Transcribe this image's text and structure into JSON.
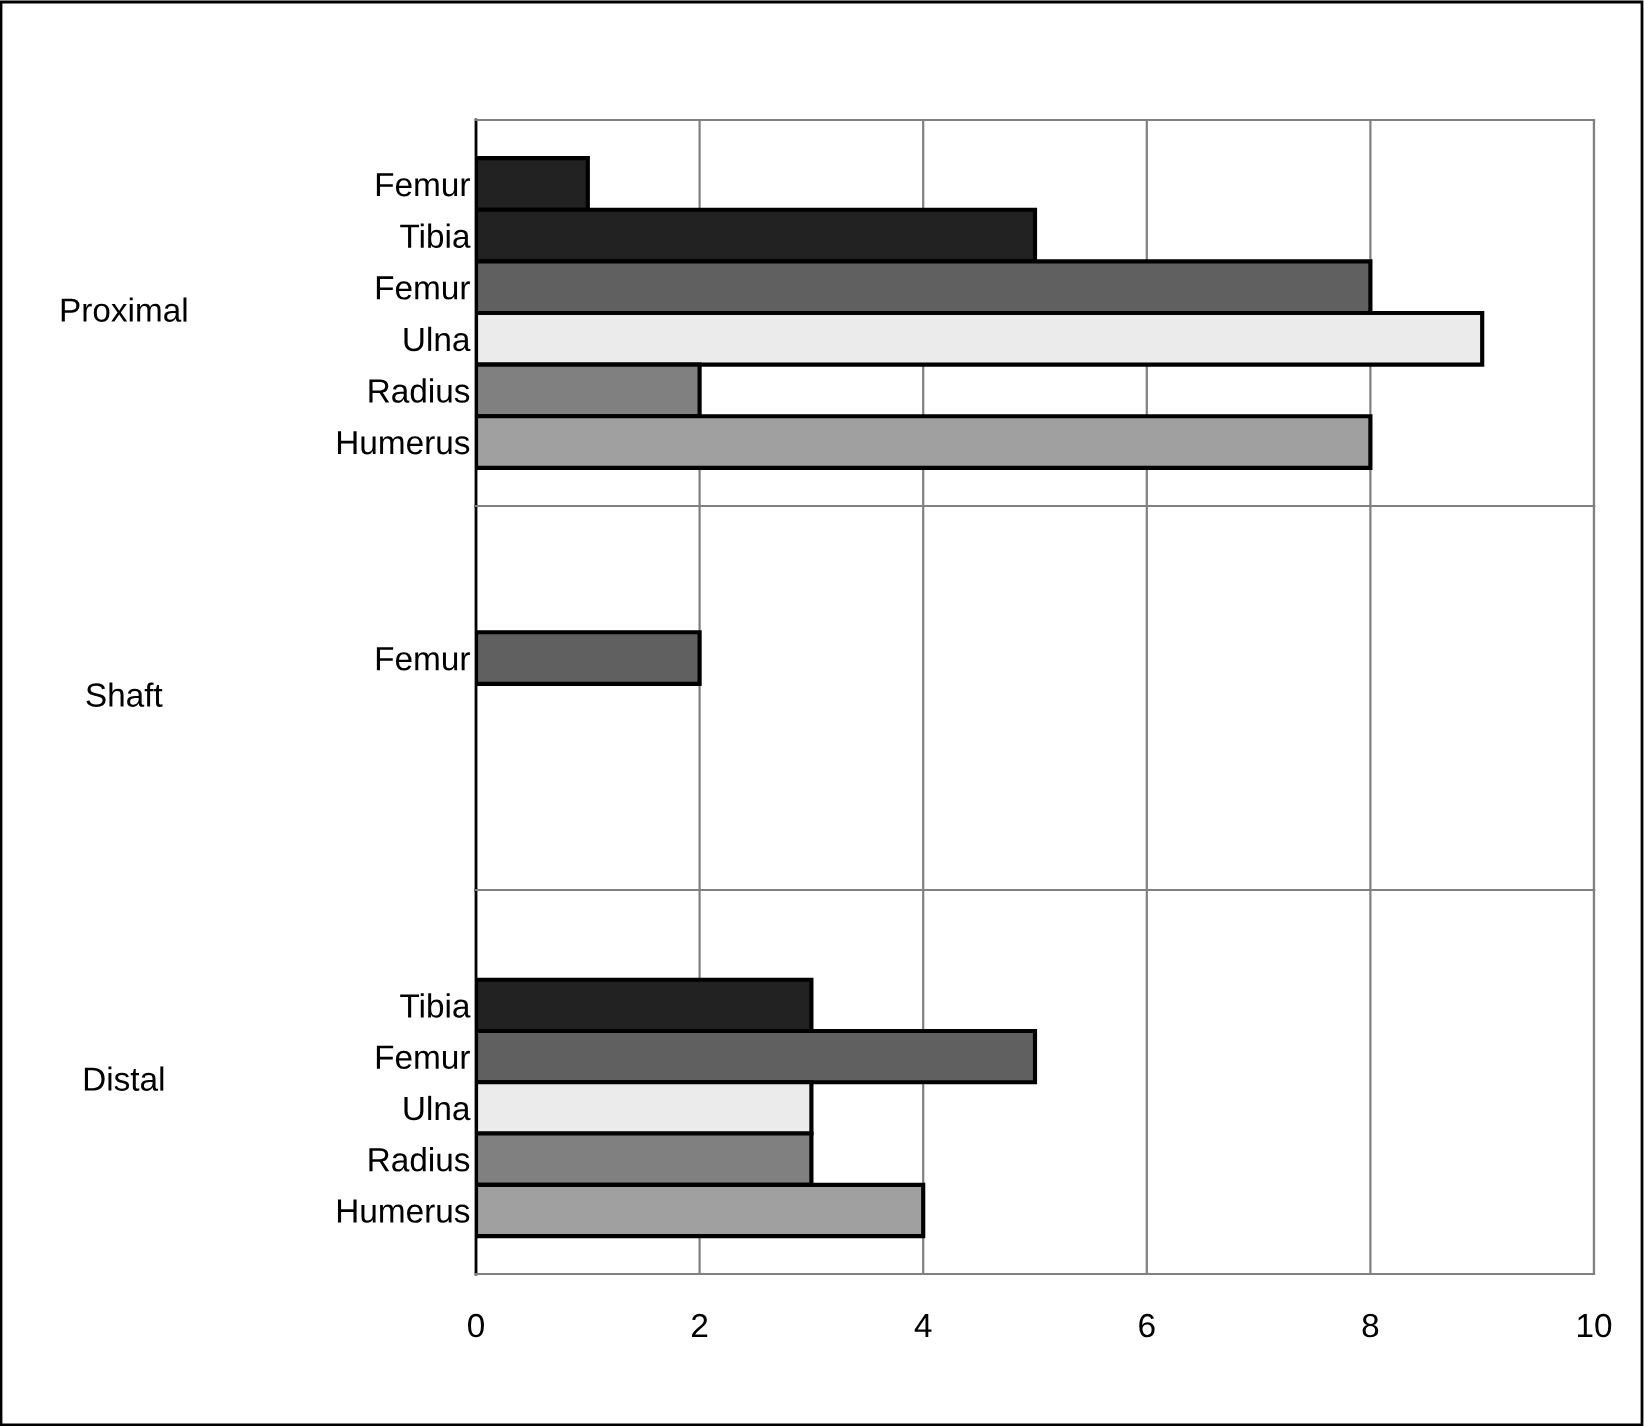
{
  "chart_data": [
    {
      "type": "bar",
      "orientation": "horizontal",
      "ylabel": "Proximal",
      "categories": [
        "Femur",
        "Tibia",
        "Femur",
        "Ulna",
        "Radius",
        "Humerus"
      ],
      "values": [
        1,
        5,
        8,
        9,
        2,
        8
      ],
      "colors": [
        "#222222",
        "#222222",
        "#606060",
        "#ebebeb",
        "#808080",
        "#a0a0a0"
      ],
      "xlim": [
        0,
        10
      ],
      "xticks": [
        0,
        2,
        4,
        6,
        8,
        10
      ],
      "grid": "x",
      "tick_labels": "y"
    },
    {
      "type": "bar",
      "orientation": "horizontal",
      "ylabel": "Shaft",
      "categories": [
        "Femur"
      ],
      "values": [
        2
      ],
      "colors": [
        "#606060"
      ],
      "xlim": [
        0,
        10
      ],
      "xticks": [
        0,
        2,
        4,
        6,
        8,
        10
      ],
      "grid": "x",
      "tick_labels": "y"
    },
    {
      "type": "bar",
      "orientation": "horizontal",
      "ylabel": "Distal",
      "categories": [
        "Tibia",
        "Femur",
        "Ulna",
        "Radius",
        "Humerus"
      ],
      "values": [
        3,
        5,
        3,
        3,
        4
      ],
      "colors": [
        "#222222",
        "#606060",
        "#ebebeb",
        "#808080",
        "#a0a0a0"
      ],
      "xlim": [
        0,
        10
      ],
      "xticks": [
        0,
        2,
        4,
        6,
        8,
        10
      ],
      "grid": "x"
    }
  ]
}
